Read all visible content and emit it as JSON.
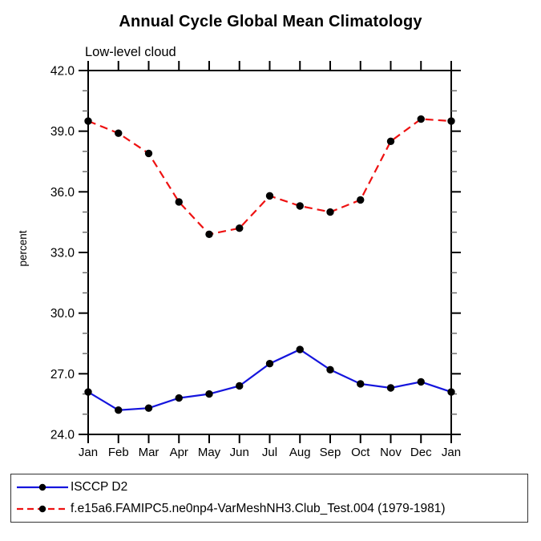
{
  "chart_data": {
    "type": "line",
    "title": "Annual Cycle Global Mean Climatology",
    "subtitle": "Low-level cloud",
    "ylabel": "percent",
    "categories": [
      "Jan",
      "Feb",
      "Mar",
      "Apr",
      "May",
      "Jun",
      "Jul",
      "Aug",
      "Sep",
      "Oct",
      "Nov",
      "Dec",
      "Jan"
    ],
    "ylim": [
      24,
      42
    ],
    "y_major_ticks": [
      24,
      27,
      30,
      33,
      36,
      39,
      42
    ],
    "y_tick_labels": [
      "24.0",
      "27.0",
      "30.0",
      "33.0",
      "36.0",
      "39.0",
      "42.0"
    ],
    "y_minor_step": 1,
    "grid": false,
    "legend_position": "bottom",
    "marker_color": "#000000",
    "series": [
      {
        "name": "ISCCP D2",
        "color": "#1515dd",
        "style": "solid",
        "values": [
          26.1,
          25.2,
          25.3,
          25.8,
          26.0,
          26.4,
          27.5,
          28.2,
          27.2,
          26.5,
          26.3,
          26.6,
          26.1
        ]
      },
      {
        "name": "f.e15a6.FAMIPC5.ne0np4-VarMeshNH3.Club_Test.004 (1979-1981)",
        "color": "#ee1111",
        "style": "dashed",
        "values": [
          39.5,
          38.9,
          37.9,
          35.5,
          33.9,
          34.2,
          35.8,
          35.3,
          35.0,
          35.6,
          38.5,
          39.6,
          39.5
        ]
      }
    ]
  }
}
